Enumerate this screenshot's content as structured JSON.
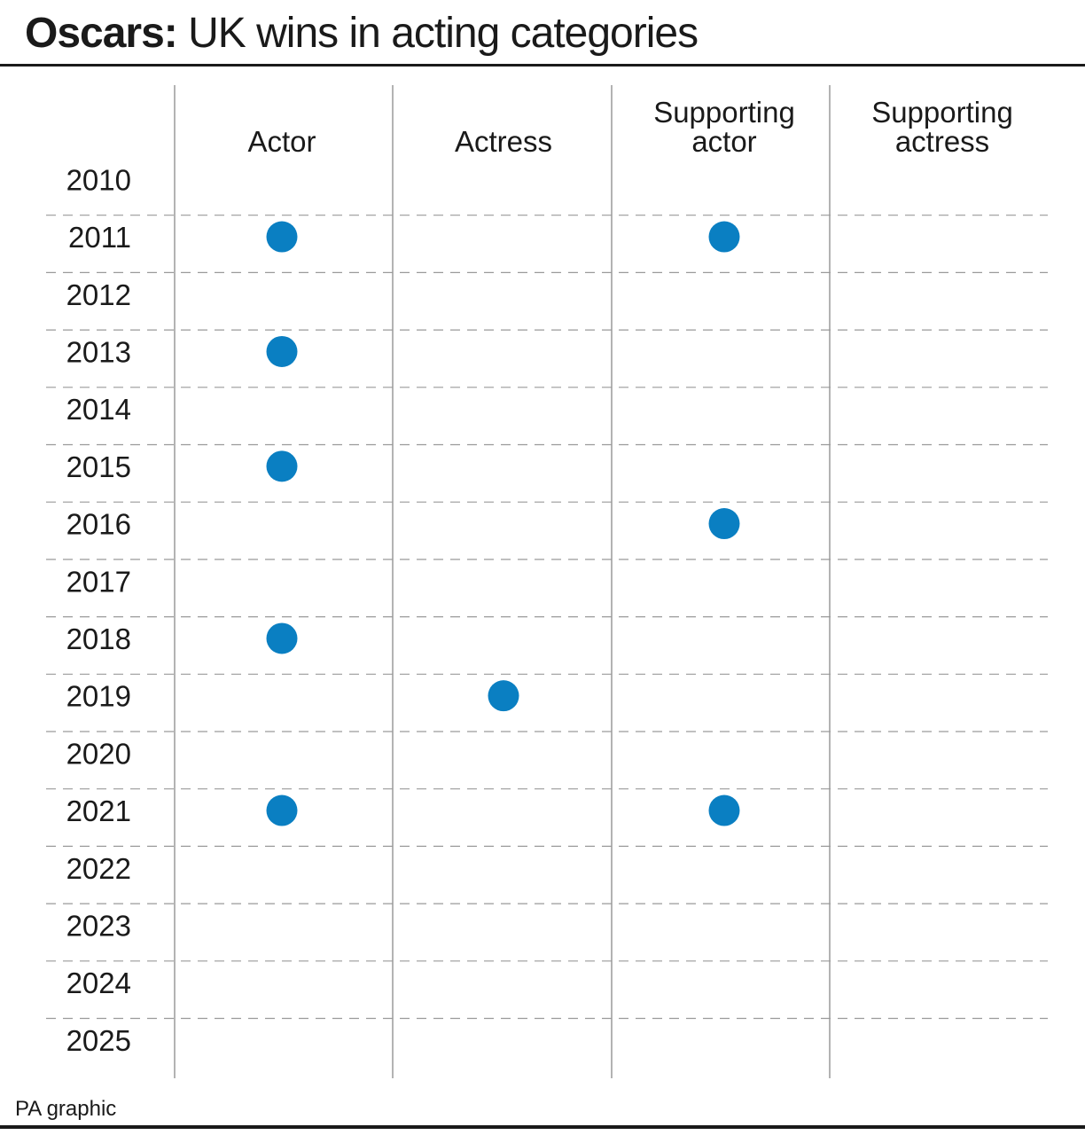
{
  "title": {
    "bold": "Oscars:",
    "rest": "UK wins in acting categories"
  },
  "credit": "PA graphic",
  "chart_data": {
    "type": "table",
    "title": "Oscars: UK wins in acting categories",
    "columns": [
      {
        "key": "actor",
        "label_lines": [
          "Actor"
        ]
      },
      {
        "key": "actress",
        "label_lines": [
          "Actress"
        ]
      },
      {
        "key": "supporting_actor",
        "label_lines": [
          "Supporting",
          "actor"
        ]
      },
      {
        "key": "supporting_actress",
        "label_lines": [
          "Supporting",
          "actress"
        ]
      }
    ],
    "years": [
      "2010",
      "2011",
      "2012",
      "2013",
      "2014",
      "2015",
      "2016",
      "2017",
      "2018",
      "2019",
      "2020",
      "2021",
      "2022",
      "2023",
      "2024",
      "2025"
    ],
    "wins": [
      {
        "year": "2011",
        "category": "actor"
      },
      {
        "year": "2011",
        "category": "supporting_actor"
      },
      {
        "year": "2013",
        "category": "actor"
      },
      {
        "year": "2015",
        "category": "actor"
      },
      {
        "year": "2016",
        "category": "supporting_actor"
      },
      {
        "year": "2018",
        "category": "actor"
      },
      {
        "year": "2019",
        "category": "actress"
      },
      {
        "year": "2021",
        "category": "actor"
      },
      {
        "year": "2021",
        "category": "supporting_actor"
      }
    ],
    "marker_color": "#0a7fc2",
    "grid": true
  }
}
